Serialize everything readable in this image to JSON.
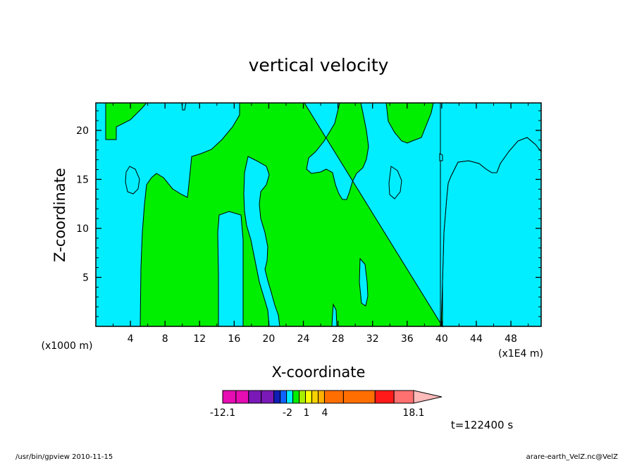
{
  "chart_data": {
    "type": "heatmap",
    "title": "vertical velocity",
    "xlabel": "X-coordinate",
    "ylabel": "Z-coordinate",
    "x_unit_left": "(x1000 m)",
    "x_unit_right": "(x1E4 m)",
    "x_ticks": [
      4,
      8,
      12,
      16,
      20,
      24,
      28,
      32,
      36,
      40,
      44,
      48
    ],
    "y_ticks": [
      5,
      10,
      15,
      20
    ],
    "xlim": [
      0,
      51.5
    ],
    "ylim": [
      0,
      22.8
    ],
    "fill_colors": {
      "negative": "#00eeff",
      "positive": "#00ee00"
    },
    "colorbar": {
      "segments": [
        {
          "from": -12.1,
          "to": -10,
          "color": "#e60db3"
        },
        {
          "from": -10,
          "to": -8,
          "color": "#e60db3"
        },
        {
          "from": -8,
          "to": -6,
          "color": "#7a19b8"
        },
        {
          "from": -6,
          "to": -4,
          "color": "#7a19b8"
        },
        {
          "from": -4,
          "to": -3,
          "color": "#0f1fb5"
        },
        {
          "from": -3,
          "to": -2,
          "color": "#0f64ff"
        },
        {
          "from": -2,
          "to": -1,
          "color": "#00eeff"
        },
        {
          "from": -1,
          "to": 0,
          "color": "#00ee00"
        },
        {
          "from": 0,
          "to": 1,
          "color": "#a8ee00"
        },
        {
          "from": 1,
          "to": 2,
          "color": "#ffff00"
        },
        {
          "from": 2,
          "to": 3,
          "color": "#f5d200"
        },
        {
          "from": 3,
          "to": 4,
          "color": "#ffb000"
        },
        {
          "from": 4,
          "to": 7,
          "color": "#ff6e00"
        },
        {
          "from": 7,
          "to": 12,
          "color": "#ff6e00"
        },
        {
          "from": 12,
          "to": 15,
          "color": "#ff1919"
        },
        {
          "from": 15,
          "to": 18.1,
          "color": "#ff7070"
        },
        {
          "from": 18.1,
          "to": 21,
          "color": "#ffbaba"
        }
      ],
      "labels": [
        "-12.1",
        "-2",
        "1",
        "4",
        "18.1"
      ]
    },
    "time_label": "t=122400 s",
    "footer_left": "/usr/bin/gpview  2010-11-15",
    "footer_right": "arare-earth_VelZ.nc@VelZ"
  }
}
